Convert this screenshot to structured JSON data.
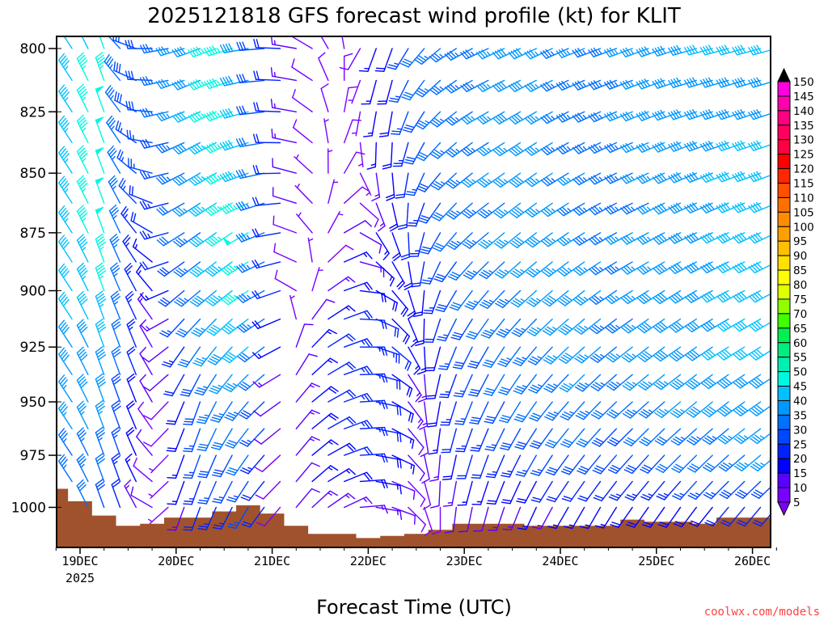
{
  "chart_data": {
    "type": "wind-barb-profile",
    "title": "2025121818 GFS forecast wind profile (kt) for KLIT",
    "xlabel": "Forecast Time (UTC)",
    "ylabel": "",
    "units": "kt",
    "x_ticks": [
      {
        "label": "19DEC",
        "sub": "2025",
        "day": 0
      },
      {
        "label": "20DEC",
        "day": 1
      },
      {
        "label": "21DEC",
        "day": 2
      },
      {
        "label": "22DEC",
        "day": 3
      },
      {
        "label": "23DEC",
        "day": 4
      },
      {
        "label": "24DEC",
        "day": 5
      },
      {
        "label": "25DEC",
        "day": 6
      },
      {
        "label": "26DEC",
        "day": 7
      }
    ],
    "xlim_days": [
      -0.25,
      7.25
    ],
    "y_ticks": [
      800,
      825,
      850,
      875,
      900,
      925,
      950,
      975,
      1000
    ],
    "ylim_hpa": [
      795,
      1020
    ],
    "y_scale": "log",
    "levels_hpa": [
      800,
      825,
      850,
      875,
      900,
      925,
      950,
      975,
      1000
    ],
    "t_days": [
      -0.25,
      0,
      0.25,
      0.5,
      0.75,
      1,
      1.25,
      1.5,
      1.75,
      2,
      2.25,
      2.5,
      2.75,
      3,
      3.25,
      3.5,
      3.75,
      4,
      4.25,
      4.5,
      4.75,
      5,
      5.25,
      5.5,
      5.75,
      6,
      6.25,
      6.5,
      6.75,
      7,
      7.25
    ],
    "wind_dir_deg": [
      [
        320,
        320,
        320,
        320,
        320,
        320,
        320,
        320,
        320
      ],
      [
        330,
        330,
        330,
        330,
        330,
        330,
        330,
        330,
        330
      ],
      [
        340,
        340,
        340,
        340,
        340,
        340,
        340,
        340,
        340
      ],
      [
        300,
        310,
        320,
        330,
        335,
        340,
        340,
        340,
        340
      ],
      [
        270,
        275,
        285,
        300,
        320,
        330,
        330,
        320,
        300
      ],
      [
        255,
        250,
        245,
        240,
        230,
        215,
        205,
        200,
        200
      ],
      [
        250,
        245,
        240,
        235,
        230,
        215,
        200,
        200,
        200
      ],
      [
        250,
        245,
        240,
        235,
        230,
        220,
        210,
        205,
        205
      ],
      [
        260,
        255,
        250,
        240,
        235,
        230,
        220,
        215,
        210
      ],
      [
        270,
        270,
        265,
        255,
        245,
        235,
        230,
        225,
        220
      ],
      [
        280,
        280,
        285,
        290,
        300,
        20,
        40,
        40,
        40
      ],
      [
        320,
        330,
        340,
        350,
        40,
        50,
        55,
        55,
        50
      ],
      [
        350,
        10,
        30,
        60,
        70,
        70,
        70,
        70,
        65
      ],
      [
        200,
        190,
        170,
        140,
        110,
        100,
        95,
        95,
        95
      ],
      [
        200,
        190,
        175,
        160,
        140,
        130,
        120,
        115,
        110
      ],
      [
        215,
        205,
        195,
        185,
        175,
        165,
        160,
        155,
        150
      ],
      [
        230,
        225,
        220,
        210,
        200,
        195,
        190,
        185,
        180
      ],
      [
        240,
        235,
        230,
        225,
        215,
        205,
        200,
        195,
        190
      ],
      [
        245,
        240,
        235,
        230,
        220,
        210,
        205,
        200,
        195
      ],
      [
        245,
        240,
        235,
        230,
        225,
        215,
        210,
        205,
        200
      ],
      [
        245,
        240,
        235,
        232,
        228,
        220,
        215,
        210,
        205
      ],
      [
        245,
        240,
        238,
        235,
        230,
        225,
        220,
        215,
        210
      ],
      [
        248,
        245,
        240,
        238,
        232,
        228,
        222,
        218,
        210
      ],
      [
        250,
        245,
        242,
        240,
        235,
        230,
        225,
        220,
        210
      ],
      [
        250,
        248,
        245,
        242,
        238,
        232,
        228,
        222,
        215
      ],
      [
        250,
        248,
        245,
        242,
        238,
        232,
        228,
        222,
        215
      ],
      [
        252,
        250,
        245,
        242,
        238,
        235,
        230,
        225,
        215
      ],
      [
        255,
        252,
        248,
        245,
        240,
        235,
        230,
        225,
        218
      ],
      [
        255,
        252,
        248,
        245,
        242,
        238,
        232,
        228,
        220
      ],
      [
        255,
        252,
        250,
        245,
        242,
        238,
        235,
        230,
        220
      ],
      [
        255,
        252,
        250,
        245,
        242,
        238,
        235,
        230,
        220
      ]
    ],
    "wind_speed_kt": [
      [
        40,
        42,
        40,
        40,
        40,
        38,
        36,
        35,
        30
      ],
      [
        45,
        45,
        45,
        45,
        42,
        40,
        38,
        35,
        32
      ],
      [
        45,
        48,
        48,
        48,
        45,
        40,
        38,
        35,
        28
      ],
      [
        30,
        30,
        28,
        28,
        30,
        28,
        25,
        22,
        18
      ],
      [
        30,
        30,
        25,
        20,
        15,
        12,
        10,
        10,
        10
      ],
      [
        35,
        35,
        30,
        28,
        25,
        20,
        15,
        12,
        10
      ],
      [
        40,
        40,
        38,
        35,
        33,
        30,
        28,
        25,
        22
      ],
      [
        48,
        48,
        48,
        45,
        42,
        38,
        35,
        30,
        25
      ],
      [
        40,
        40,
        45,
        48,
        45,
        40,
        35,
        30,
        25
      ],
      [
        25,
        25,
        25,
        28,
        30,
        28,
        25,
        22,
        18
      ],
      [
        15,
        15,
        12,
        10,
        8,
        10,
        15,
        15,
        10
      ],
      [
        8,
        8,
        6,
        5,
        10,
        20,
        20,
        18,
        15
      ],
      [
        8,
        8,
        8,
        12,
        20,
        25,
        25,
        22,
        15
      ],
      [
        15,
        15,
        12,
        15,
        20,
        25,
        25,
        22,
        15
      ],
      [
        20,
        20,
        18,
        20,
        20,
        20,
        18,
        15,
        10
      ],
      [
        30,
        28,
        25,
        22,
        18,
        15,
        12,
        10,
        8
      ],
      [
        35,
        35,
        30,
        28,
        25,
        20,
        18,
        15,
        10
      ],
      [
        35,
        35,
        35,
        32,
        30,
        28,
        25,
        20,
        12
      ],
      [
        35,
        35,
        35,
        35,
        33,
        30,
        28,
        22,
        12
      ],
      [
        38,
        38,
        35,
        35,
        35,
        32,
        30,
        25,
        15
      ],
      [
        38,
        38,
        38,
        38,
        35,
        35,
        32,
        25,
        15
      ],
      [
        35,
        35,
        35,
        38,
        38,
        35,
        32,
        28,
        15
      ],
      [
        35,
        35,
        35,
        35,
        38,
        38,
        35,
        28,
        15
      ],
      [
        35,
        35,
        35,
        35,
        35,
        35,
        32,
        28,
        15
      ],
      [
        35,
        35,
        35,
        35,
        35,
        35,
        32,
        28,
        18
      ],
      [
        38,
        38,
        35,
        35,
        38,
        38,
        35,
        30,
        18
      ],
      [
        38,
        38,
        38,
        38,
        38,
        38,
        35,
        30,
        18
      ],
      [
        40,
        40,
        38,
        38,
        40,
        40,
        38,
        32,
        20
      ],
      [
        40,
        40,
        40,
        40,
        40,
        40,
        38,
        32,
        20
      ],
      [
        40,
        40,
        42,
        42,
        42,
        40,
        38,
        35,
        22
      ],
      [
        40,
        40,
        42,
        42,
        42,
        40,
        38,
        35,
        22
      ]
    ],
    "surface_pressure_hpa": [
      991,
      997,
      1004,
      1009,
      1008,
      1005,
      1005,
      1002,
      999,
      1003,
      1009,
      1013,
      1013,
      1015,
      1014,
      1013,
      1011,
      1008,
      1008,
      1008,
      1009,
      1009,
      1009,
      1009,
      1006,
      1007,
      1007,
      1008,
      1005,
      1005,
      1005
    ],
    "terrain_color": "#a0522d",
    "colorbar": {
      "labels": [
        5,
        10,
        15,
        20,
        25,
        30,
        35,
        40,
        45,
        50,
        55,
        60,
        65,
        70,
        75,
        80,
        85,
        90,
        95,
        100,
        105,
        110,
        115,
        120,
        125,
        130,
        135,
        140,
        145,
        150
      ],
      "colors": [
        "#7a00ff",
        "#5a00ff",
        "#0000ff",
        "#0022ff",
        "#0048ff",
        "#0070ff",
        "#0098ff",
        "#00c0ff",
        "#00f8e0",
        "#00f0b0",
        "#00ee80",
        "#00f050",
        "#40ff00",
        "#90ff00",
        "#e0ff00",
        "#ffff00",
        "#ffe000",
        "#ffc000",
        "#ffa000",
        "#ff8c00",
        "#ff7000",
        "#ff5000",
        "#ff2800",
        "#ff0000",
        "#ff0040",
        "#ff0060",
        "#ff0080",
        "#ff00b0",
        "#ff00e0"
      ],
      "over_color": "#000000",
      "under_color": "#8000ff"
    }
  },
  "credit": "coolwx.com/models"
}
